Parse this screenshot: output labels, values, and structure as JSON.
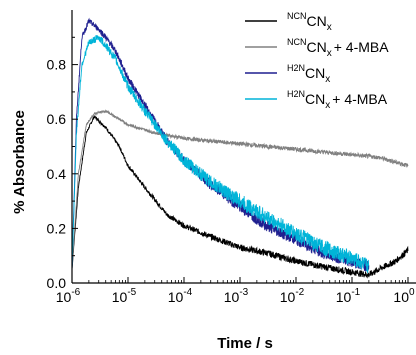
{
  "chart_data": {
    "type": "line",
    "title": "",
    "xlabel": "Time / s",
    "ylabel": "% Absorbance",
    "xscale": "log",
    "xlim": [
      1e-06,
      1
    ],
    "ylim": [
      0,
      1.0
    ],
    "grid": false,
    "legend_position": "top-right",
    "x_ticks": [
      {
        "base": "10",
        "exp": "-6"
      },
      {
        "base": "10",
        "exp": "-5"
      },
      {
        "base": "10",
        "exp": "-4"
      },
      {
        "base": "10",
        "exp": "-3"
      },
      {
        "base": "10",
        "exp": "-2"
      },
      {
        "base": "10",
        "exp": "-1"
      },
      {
        "base": "10",
        "exp": "0"
      }
    ],
    "y_ticks": [
      "0.0",
      "0.2",
      "0.4",
      "0.6",
      "0.8"
    ],
    "series": [
      {
        "legend_sup": "NCN",
        "legend_main": "CN",
        "legend_sub": "x",
        "legend_suffix": "",
        "color": "#000000",
        "x": [
          1e-06,
          1.3e-06,
          1.8e-06,
          2.5e-06,
          4e-06,
          7e-06,
          1e-05,
          2e-05,
          5e-05,
          0.0001,
          0.0003,
          0.001,
          0.003,
          0.01,
          0.03,
          0.1,
          0.2,
          0.3,
          0.6,
          1
        ],
        "y": [
          0.05,
          0.35,
          0.55,
          0.61,
          0.57,
          0.5,
          0.43,
          0.35,
          0.25,
          0.21,
          0.17,
          0.13,
          0.11,
          0.08,
          0.06,
          0.04,
          0.03,
          0.05,
          0.08,
          0.12
        ],
        "noise": 0.012
      },
      {
        "legend_sup": "NCN",
        "legend_main": "CN",
        "legend_sub": "x",
        "legend_suffix": "+ 4-MBA",
        "color": "#808080",
        "x": [
          1e-06,
          1.3e-06,
          1.8e-06,
          2.5e-06,
          4e-06,
          7e-06,
          1e-05,
          3e-05,
          0.0001,
          0.0003,
          0.001,
          0.003,
          0.01,
          0.03,
          0.1,
          0.3,
          1
        ],
        "y": [
          0.05,
          0.4,
          0.58,
          0.62,
          0.63,
          0.6,
          0.58,
          0.55,
          0.53,
          0.52,
          0.51,
          0.5,
          0.49,
          0.48,
          0.47,
          0.46,
          0.43
        ],
        "noise": 0.008
      },
      {
        "legend_sup": "H2N",
        "legend_main": "CN",
        "legend_sub": "x",
        "legend_suffix": "",
        "color": "#1f1f8f",
        "x": [
          1e-06,
          1.2e-06,
          1.5e-06,
          2e-06,
          3e-06,
          4e-06,
          6e-06,
          1e-05,
          2e-05,
          5e-05,
          0.0001,
          0.0003,
          0.001,
          0.003,
          0.01,
          0.03,
          0.1,
          0.2
        ],
        "y": [
          0.05,
          0.6,
          0.9,
          0.96,
          0.93,
          0.9,
          0.85,
          0.75,
          0.65,
          0.52,
          0.45,
          0.36,
          0.28,
          0.21,
          0.16,
          0.11,
          0.08,
          0.06
        ],
        "noise": 0.022
      },
      {
        "legend_sup": "H2N",
        "legend_main": "CN",
        "legend_sub": "x",
        "legend_suffix": "+ 4-MBA",
        "color": "#00b4d8",
        "x": [
          1e-06,
          1.2e-06,
          1.5e-06,
          2e-06,
          3e-06,
          4e-06,
          6e-06,
          1e-05,
          2e-05,
          5e-05,
          0.0001,
          0.0003,
          0.001,
          0.003,
          0.01,
          0.03,
          0.1,
          0.2
        ],
        "y": [
          0.05,
          0.55,
          0.8,
          0.88,
          0.9,
          0.87,
          0.82,
          0.72,
          0.63,
          0.52,
          0.45,
          0.37,
          0.3,
          0.24,
          0.18,
          0.13,
          0.09,
          0.06
        ],
        "noise": 0.028
      }
    ]
  }
}
